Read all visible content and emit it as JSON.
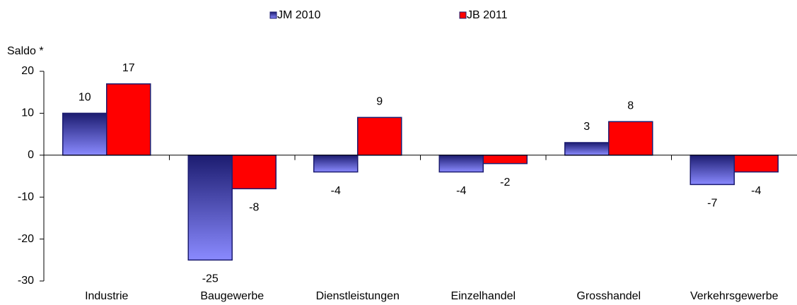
{
  "chart_data": {
    "type": "bar",
    "y_axis_label": "Saldo *",
    "categories": [
      "Industrie",
      "Baugewerbe",
      "Dienstleistungen",
      "Einzelhandel",
      "Grosshandel",
      "Verkehrsgewerbe"
    ],
    "series": [
      {
        "name": "JM 2010",
        "color": "#1c1c70",
        "values": [
          10,
          -25,
          -4,
          -4,
          3,
          -7
        ]
      },
      {
        "name": "JB 2011",
        "color": "#ff0000",
        "values": [
          17,
          -8,
          9,
          -2,
          8,
          -4
        ]
      }
    ],
    "ylim": [
      -30,
      20
    ],
    "yticks": [
      -30,
      -20,
      -10,
      0,
      10,
      20
    ],
    "legend": "top"
  }
}
